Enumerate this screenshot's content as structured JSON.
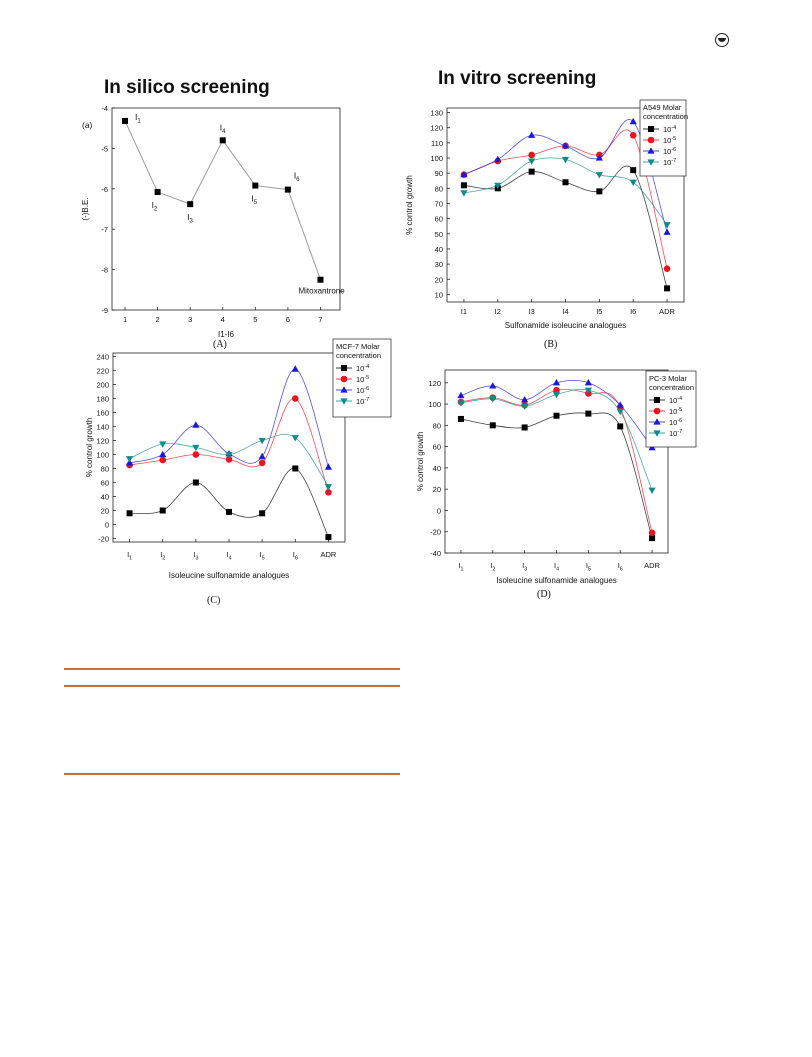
{
  "page": {
    "heading_left": "In silico screening",
    "heading_right": "In vitro screening",
    "logo_icon": "journal-logo-icon",
    "rule_color": "#d26a2a"
  },
  "chart_data": [
    {
      "id": "A",
      "type": "line",
      "caption": "(A)",
      "panel_label": "(a)",
      "xlabel": "I1-I6",
      "ylabel": "(-)B.E.",
      "xlim": [
        0.6,
        7.6
      ],
      "ylim": [
        -9,
        -4
      ],
      "x_ticks": [
        "1",
        "2",
        "3",
        "4",
        "5",
        "6",
        "7"
      ],
      "y_ticks": [
        "-4",
        "-5",
        "-6",
        "-7",
        "-8",
        "-9"
      ],
      "smooth": false,
      "series": [
        {
          "x": [
            1,
            2,
            3,
            4,
            5,
            6,
            7
          ],
          "values": [
            -4.32,
            -6.08,
            -6.38,
            -4.8,
            -5.92,
            -6.02,
            -8.25
          ]
        }
      ],
      "point_labels": [
        "I1",
        "I2",
        "I3",
        "I4",
        "I5",
        "I6",
        "Mitoxantrone"
      ]
    },
    {
      "id": "B",
      "type": "line",
      "caption": "(B)",
      "legend_title": "A549 Molar concentration",
      "xlabel": "Sulfonamide isoleucine analogues",
      "ylabel": "% control growth",
      "categories": [
        "I1",
        "I2",
        "I3",
        "I4",
        "I5",
        "I6",
        "ADR"
      ],
      "ylim": [
        5,
        133
      ],
      "y_ticks": [
        "10",
        "20",
        "30",
        "40",
        "50",
        "60",
        "70",
        "80",
        "90",
        "100",
        "110",
        "120",
        "130"
      ],
      "smooth": true,
      "series": [
        {
          "name": "10-4",
          "values": [
            82,
            80,
            91,
            84,
            78,
            92,
            14
          ],
          "color": "#000000",
          "marker": "square"
        },
        {
          "name": "10-5",
          "values": [
            89,
            98,
            102,
            108,
            102,
            115,
            27
          ],
          "color": "#e8141e",
          "marker": "circle"
        },
        {
          "name": "10-6",
          "values": [
            89,
            99,
            115,
            108,
            100,
            124,
            51
          ],
          "color": "#1a1ad6",
          "marker": "triangle-up"
        },
        {
          "name": "10-7",
          "values": [
            77,
            82,
            98,
            99,
            89,
            84,
            56
          ],
          "color": "#138a8a",
          "marker": "triangle-down"
        }
      ]
    },
    {
      "id": "C",
      "type": "line",
      "caption": "(C)",
      "legend_title": "MCF-7 Molar concentration",
      "xlabel": "Isoleucine sulfonamide analogues",
      "ylabel": "% control growth",
      "categories": [
        "I1",
        "I2",
        "I3",
        "I4",
        "I5",
        "I6",
        "ADR"
      ],
      "ylim": [
        -25,
        245
      ],
      "y_ticks": [
        "-20",
        "0",
        "20",
        "40",
        "60",
        "80",
        "100",
        "120",
        "140",
        "160",
        "180",
        "200",
        "220",
        "240"
      ],
      "smooth": true,
      "series": [
        {
          "name": "10-4",
          "values": [
            16,
            20,
            60,
            18,
            16,
            80,
            -18
          ],
          "color": "#000000",
          "marker": "square"
        },
        {
          "name": "10-5",
          "values": [
            85,
            92,
            100,
            93,
            88,
            180,
            46
          ],
          "color": "#e8141e",
          "marker": "circle"
        },
        {
          "name": "10-6",
          "values": [
            88,
            100,
            142,
            101,
            97,
            222,
            82
          ],
          "color": "#1a1ad6",
          "marker": "triangle-up"
        },
        {
          "name": "10-7",
          "values": [
            94,
            115,
            110,
            100,
            120,
            124,
            54
          ],
          "color": "#138a8a",
          "marker": "triangle-down"
        }
      ]
    },
    {
      "id": "D",
      "type": "line",
      "caption": "(D)",
      "legend_title": "PC-3 Molar concentration",
      "xlabel": "Isoleucine sulfonamide analogues",
      "ylabel": "% control growth",
      "categories": [
        "I1",
        "I2",
        "I3",
        "I4",
        "I5",
        "I6",
        "ADR"
      ],
      "ylim": [
        -40,
        132
      ],
      "y_ticks": [
        "-40",
        "-20",
        "0",
        "20",
        "40",
        "60",
        "80",
        "100",
        "120"
      ],
      "smooth": true,
      "series": [
        {
          "name": "10-4",
          "values": [
            86,
            80,
            78,
            89,
            91,
            79,
            -26
          ],
          "color": "#000000",
          "marker": "square"
        },
        {
          "name": "10-5",
          "values": [
            102,
            106,
            99,
            113,
            110,
            97,
            -21
          ],
          "color": "#e8141e",
          "marker": "circle"
        },
        {
          "name": "10-6",
          "values": [
            108,
            117,
            104,
            120,
            120,
            99,
            59
          ],
          "color": "#1a1ad6",
          "marker": "triangle-up"
        },
        {
          "name": "10-7",
          "values": [
            101,
            105,
            98,
            109,
            113,
            93,
            19
          ],
          "color": "#138a8a",
          "marker": "triangle-down"
        }
      ]
    }
  ]
}
